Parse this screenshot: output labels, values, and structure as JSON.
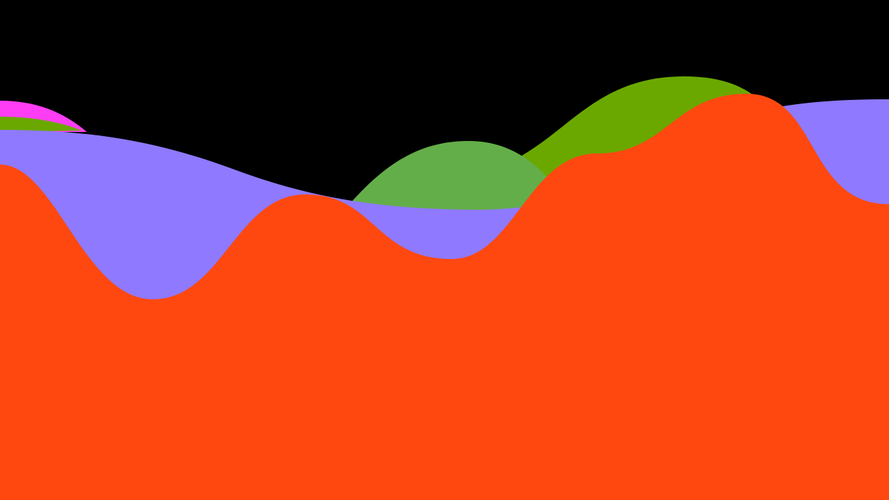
{
  "background_color": "#000000",
  "layers": [
    {
      "name": "magenta-wave",
      "color": "#ff3df5"
    },
    {
      "name": "olive-green-wave-left",
      "color": "#6aa800"
    },
    {
      "name": "olive-green-wave-right",
      "color": "#6aa800"
    },
    {
      "name": "light-green-hill",
      "color": "#64ae4a"
    },
    {
      "name": "lavender-wave",
      "color": "#8f79fe"
    },
    {
      "name": "orange-red-wave",
      "color": "#ff4810"
    }
  ]
}
